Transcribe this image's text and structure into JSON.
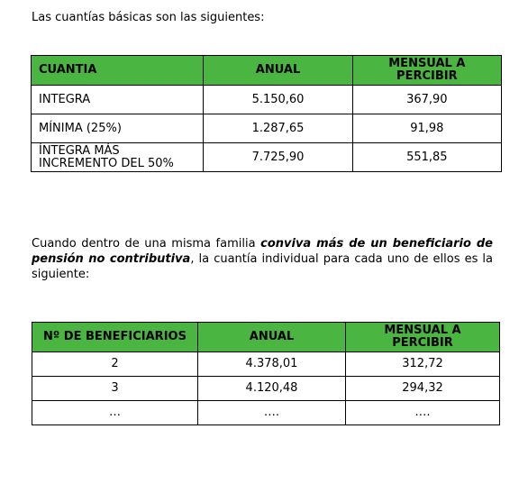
{
  "intro": "Las cuantías básicas son las siguientes:",
  "table1": {
    "headers": [
      "CUANTIA",
      "ANUAL",
      "MENSUAL A PERCIBIR"
    ],
    "rows": [
      [
        "INTEGRA",
        "5.150,60",
        "367,90"
      ],
      [
        "MÍNIMA (25%)",
        "1.287,65",
        "91,98"
      ],
      [
        "ÍNTEGRA MÁS INCREMENTO DEL 50%",
        "7.725,90",
        "551,85"
      ]
    ]
  },
  "paragraph": {
    "before": "Cuando dentro de una misma familia ",
    "emphasis": "conviva más de un beneficiario de pensión no contributiva",
    "after": ", la cuantía individual para cada uno de ellos es la siguiente:"
  },
  "table2": {
    "headers": [
      "Nº DE BENEFICIARIOS",
      "ANUAL",
      "MENSUAL A PERCIBIR"
    ],
    "rows": [
      [
        "2",
        "4.378,01",
        "312,72"
      ],
      [
        "3",
        "4.120,48",
        "294,32"
      ],
      [
        "…",
        "….",
        "…."
      ]
    ]
  },
  "colors": {
    "header_green": "#4bb541"
  }
}
